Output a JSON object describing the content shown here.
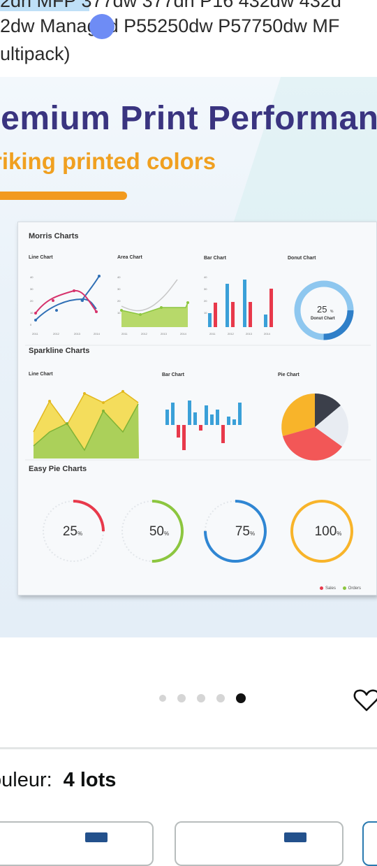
{
  "title": {
    "line1": "2dn MFP 377dw 377dn P16 432dw 432d",
    "line2": "2dw Managed P55250dw P57750dw MF",
    "line3": "ultipack)"
  },
  "hero": {
    "title": "remium Print Performanc",
    "subtitle": "riking printed colors",
    "sheet": {
      "morris_title": "Morris Charts",
      "line_chart_label": "Line Chart",
      "area_chart_label": "Area Chart",
      "bar_chart_label": "Bar Chart",
      "donut_chart_label": "Donut Chart",
      "donut_value": "25",
      "donut_unit": "%",
      "donut_caption": "Donut Chart",
      "sparkline_title": "Sparkline Charts",
      "spark_line_label": "Line Chart",
      "spark_bar_label": "Bar Chart",
      "spark_pie_label": "Pie Chart",
      "easy_pie_title": "Easy Pie Charts",
      "pies": [
        {
          "value": "25",
          "unit": "%",
          "color": "#e8394b",
          "fraction": 0.25
        },
        {
          "value": "50",
          "unit": "%",
          "color": "#8cc63f",
          "fraction": 0.5
        },
        {
          "value": "75",
          "unit": "%",
          "color": "#2f86d3",
          "fraction": 0.75
        },
        {
          "value": "100",
          "unit": "%",
          "color": "#f8b42a",
          "fraction": 1.0
        }
      ],
      "legend_sales": "Sales",
      "legend_orders": "Orders",
      "x_ticks": [
        "2011",
        "2012",
        "2013",
        "2014"
      ],
      "y_ticks": [
        "40",
        "30",
        "20",
        "10",
        "0"
      ]
    }
  },
  "carousel": {
    "count": 5,
    "active": 4
  },
  "variant": {
    "label": "ouleur:",
    "value": "4 lots"
  },
  "colors": {
    "accent_orange": "#f29a1e",
    "title_navy": "#3a3480",
    "swatch_icon": "#23518c"
  }
}
